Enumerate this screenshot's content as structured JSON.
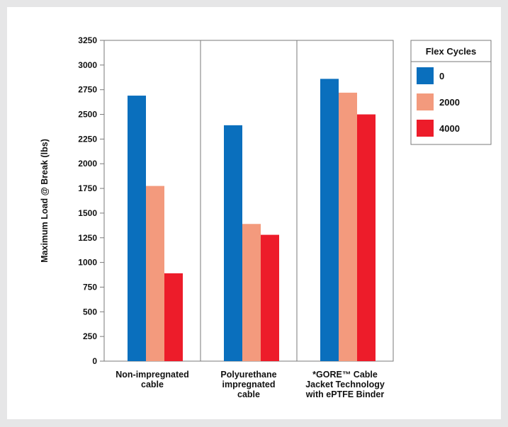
{
  "chart_data": {
    "type": "bar",
    "ylabel": "Maximum Load @ Break (lbs)",
    "ylim": [
      0,
      3250
    ],
    "yticks": [
      0,
      250,
      500,
      750,
      1000,
      1250,
      1500,
      1750,
      2000,
      2250,
      2500,
      2750,
      3000,
      3250
    ],
    "categories": [
      [
        "Non-impregnated",
        "cable"
      ],
      [
        "Polyurethane",
        "impregnated",
        "cable"
      ],
      [
        "*GORE™ Cable",
        "Jacket Technology",
        "with ePTFE Binder"
      ]
    ],
    "legend_title": "Flex Cycles",
    "legend_position": "right",
    "series": [
      {
        "name": "0",
        "color": "#0a6fbd",
        "values": [
          2690,
          2390,
          2860
        ]
      },
      {
        "name": "2000",
        "color": "#f39a7d",
        "values": [
          1775,
          1390,
          2720
        ]
      },
      {
        "name": "4000",
        "color": "#ed1c2a",
        "values": [
          890,
          1280,
          2500
        ]
      }
    ],
    "grid": false
  }
}
